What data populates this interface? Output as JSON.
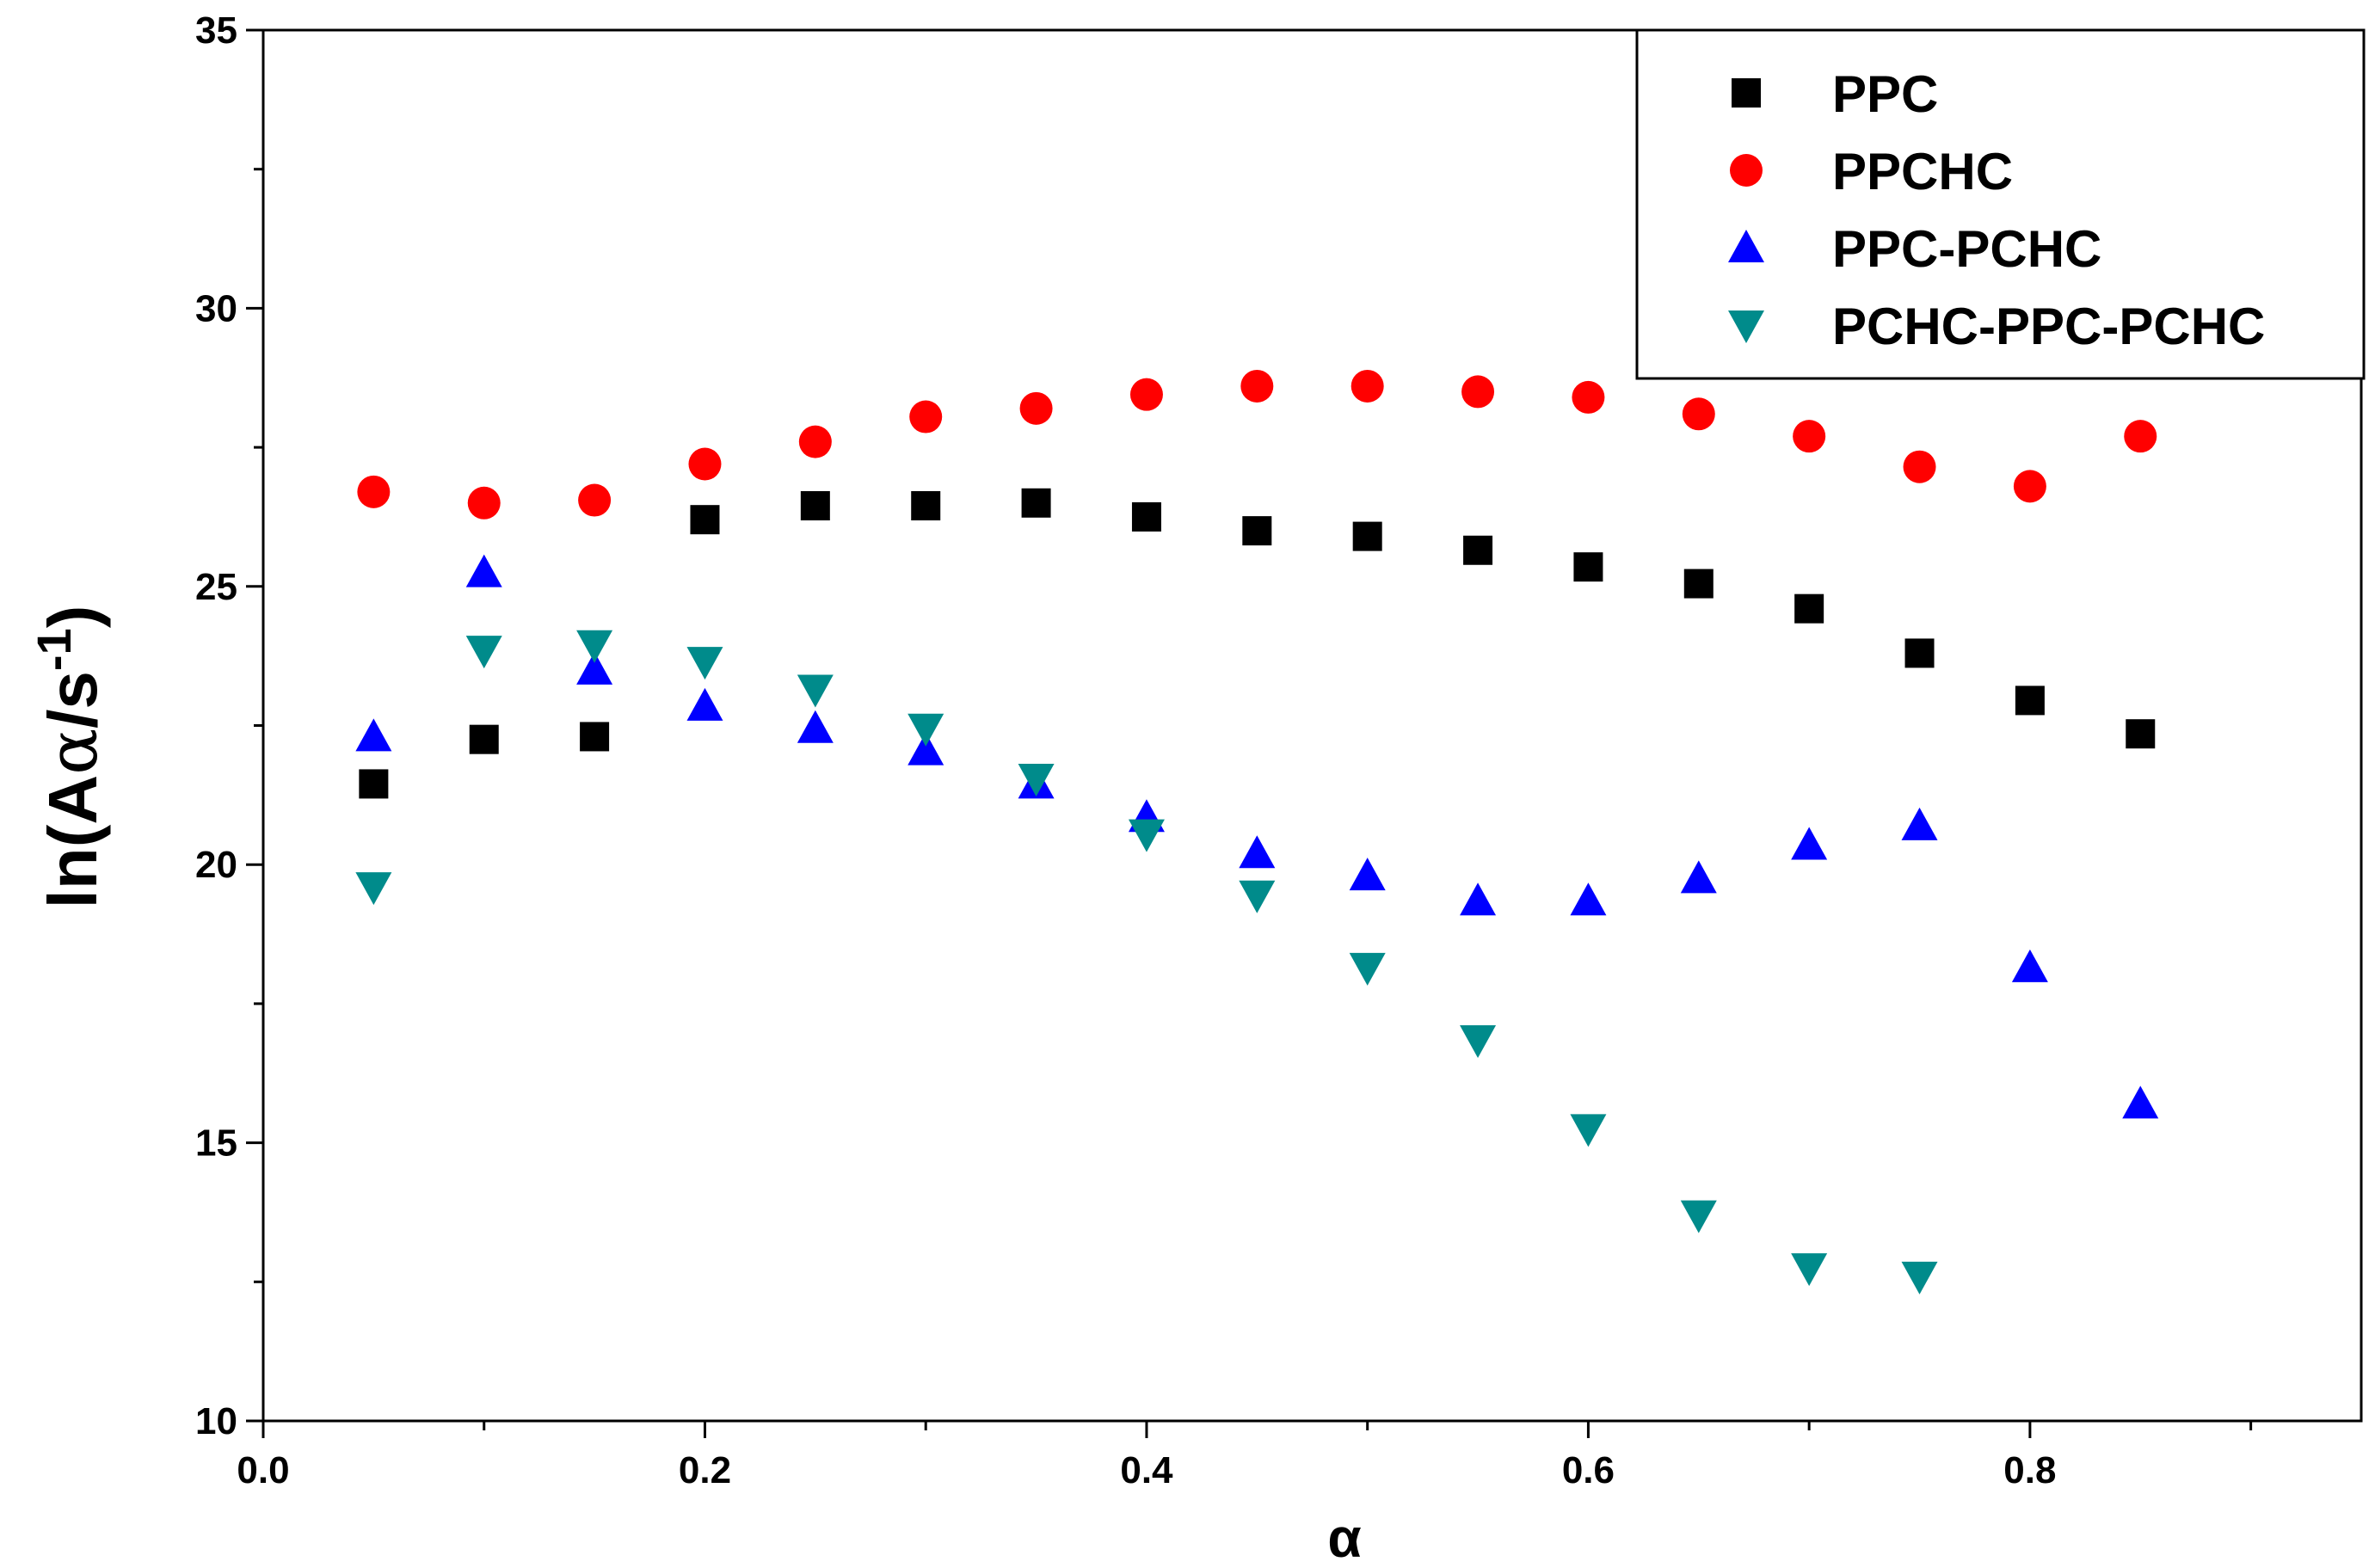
{
  "chart_data": {
    "type": "scatter",
    "title": "",
    "xlabel": "α",
    "ylabel": {
      "prefix": "ln(A",
      "alpha": "α",
      "mid": "/s",
      "sup": "-1",
      "suffix": ")"
    },
    "xlim": [
      0.0,
      0.95
    ],
    "ylim": [
      10,
      35
    ],
    "xticks": [
      0.0,
      0.2,
      0.4,
      0.6,
      0.8
    ],
    "xtick_labels": [
      "0.0",
      "0.2",
      "0.4",
      "0.6",
      "0.8"
    ],
    "xminor": [
      0.1,
      0.3,
      0.5,
      0.7,
      0.9
    ],
    "yticks": [
      10,
      15,
      20,
      25,
      30,
      35
    ],
    "ytick_labels": [
      "10",
      "15",
      "20",
      "25",
      "30",
      "35"
    ],
    "yminor": [
      12.5,
      17.5,
      22.5,
      27.5,
      32.5
    ],
    "grid": false,
    "legend_position": "top-right",
    "x": [
      0.05,
      0.1,
      0.15,
      0.2,
      0.25,
      0.3,
      0.35,
      0.4,
      0.45,
      0.5,
      0.55,
      0.6,
      0.65,
      0.7,
      0.75,
      0.8,
      0.85
    ],
    "series": [
      {
        "name": "PPC",
        "marker": "square",
        "color": "#000000",
        "values": [
          21.45,
          22.25,
          22.3,
          26.2,
          26.45,
          26.45,
          26.5,
          26.25,
          26.0,
          25.9,
          25.65,
          25.35,
          25.05,
          24.6,
          23.8,
          22.95,
          22.35
        ]
      },
      {
        "name": "PPCHC",
        "marker": "circle",
        "color": "#ff0000",
        "values": [
          26.7,
          26.5,
          26.55,
          27.2,
          27.6,
          28.05,
          28.2,
          28.45,
          28.6,
          28.6,
          28.5,
          28.4,
          28.1,
          27.7,
          27.15,
          26.8,
          27.7
        ]
      },
      {
        "name": "PPC-PCHC",
        "marker": "triangle-up",
        "color": "#0000ff",
        "values": [
          22.3,
          25.25,
          23.5,
          22.85,
          22.45,
          22.05,
          21.45,
          20.85,
          20.2,
          19.8,
          19.35,
          19.35,
          19.75,
          20.35,
          20.7,
          18.15,
          15.7
        ]
      },
      {
        "name": "PCHC-PPC-PCHC",
        "marker": "triangle-down",
        "color": "#008b8b",
        "values": [
          19.6,
          23.85,
          23.95,
          23.65,
          23.15,
          22.45,
          21.55,
          20.55,
          19.45,
          18.15,
          16.85,
          15.25,
          13.7,
          12.75,
          12.6,
          null,
          null
        ]
      }
    ]
  }
}
